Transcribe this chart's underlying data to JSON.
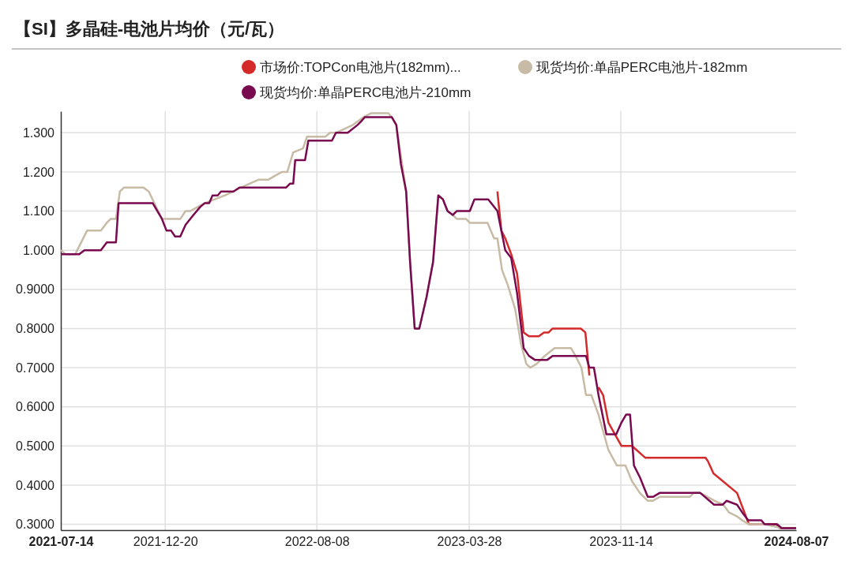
{
  "chart_data": {
    "type": "line",
    "title": "【SI】多晶硅-电池片均价（元/瓦）",
    "xlim": [
      "2021-07-14",
      "2024-08-07"
    ],
    "xticks": [
      "2021-07-14",
      "2021-12-20",
      "2022-08-08",
      "2023-03-28",
      "2023-11-14",
      "2024-08-07"
    ],
    "ylim": [
      0.285,
      1.355
    ],
    "yticks": [
      {
        "value": 0.3,
        "label": "0.3000"
      },
      {
        "value": 0.4,
        "label": "0.4000"
      },
      {
        "value": 0.5,
        "label": "0.5000"
      },
      {
        "value": 0.6,
        "label": "0.6000"
      },
      {
        "value": 0.7,
        "label": "0.7000"
      },
      {
        "value": 0.8,
        "label": "0.8000"
      },
      {
        "value": 0.9,
        "label": "0.9000"
      },
      {
        "value": 1.0,
        "label": "1.000"
      },
      {
        "value": 1.1,
        "label": "1.100"
      },
      {
        "value": 1.2,
        "label": "1.200"
      },
      {
        "value": 1.3,
        "label": "1.300"
      }
    ],
    "grid": true,
    "legend": "top",
    "marker": "none",
    "line_style": "solid",
    "series": [
      {
        "name": "市场价:TOPCon电池片(182mm)...",
        "color": "#d42a2a",
        "x": [
          "2023-05-10",
          "2023-05-16",
          "2023-05-22",
          "2023-05-31",
          "2023-06-09",
          "2023-06-19",
          "2023-06-27",
          "2023-07-12",
          "2023-07-20",
          "2023-07-27",
          "2023-08-02",
          "2023-09-14",
          "2023-09-21",
          "2023-09-27",
          "2023-10-04",
          "2023-10-11",
          "2023-10-18",
          "2023-10-26",
          "2023-11-15",
          "2023-12-01",
          "2023-12-21",
          "2024-03-22",
          "2024-03-26",
          "2024-04-03",
          "2024-05-09",
          "2024-05-27",
          "2024-05-29",
          "2024-07-08",
          "2024-07-13",
          "2024-08-07"
        ],
        "values": [
          1.15,
          1.05,
          1.03,
          0.99,
          0.94,
          0.79,
          0.78,
          0.78,
          0.79,
          0.79,
          0.8,
          0.8,
          0.79,
          0.68,
          null,
          0.65,
          0.63,
          0.56,
          0.5,
          0.5,
          0.47,
          0.47,
          0.46,
          0.43,
          0.38,
          0.3,
          0.3,
          0.3,
          0.29,
          0.29
        ]
      },
      {
        "name": "现货均价:单晶PERC电池片-182mm",
        "color": "#c8bba5",
        "x": [
          "2021-07-14",
          "2021-07-21",
          "2021-08-05",
          "2021-08-23",
          "2021-09-13",
          "2021-09-22",
          "2021-09-28",
          "2021-10-06",
          "2021-10-12",
          "2021-10-18",
          "2021-11-17",
          "2021-11-25",
          "2021-12-15",
          "2021-12-19",
          "2022-01-12",
          "2022-01-20",
          "2022-01-27",
          "2022-02-18",
          "2022-03-21",
          "2022-04-03",
          "2022-04-14",
          "2022-05-11",
          "2022-05-26",
          "2022-06-05",
          "2022-06-16",
          "2022-06-24",
          "2022-07-03",
          "2022-07-18",
          "2022-07-24",
          "2022-08-21",
          "2022-08-28",
          "2022-09-06",
          "2022-10-02",
          "2022-10-18",
          "2022-10-30",
          "2022-11-25",
          "2022-11-30",
          "2022-12-07",
          "2022-12-22",
          "2022-12-28",
          "2023-01-04",
          "2023-01-11",
          "2023-01-22",
          "2023-02-01",
          "2023-02-09",
          "2023-02-16",
          "2023-02-23",
          "2023-03-03",
          "2023-03-09",
          "2023-03-23",
          "2023-03-29",
          "2023-04-25",
          "2023-05-05",
          "2023-05-10",
          "2023-05-17",
          "2023-05-26",
          "2023-06-06",
          "2023-06-15",
          "2023-06-23",
          "2023-06-29",
          "2023-07-09",
          "2023-07-21",
          "2023-08-05",
          "2023-08-30",
          "2023-09-06",
          "2023-09-15",
          "2023-09-22",
          "2023-09-30",
          "2023-10-11",
          "2023-10-26",
          "2023-11-08",
          "2023-11-21",
          "2023-12-01",
          "2023-12-13",
          "2023-12-25",
          "2024-01-02",
          "2024-01-12",
          "2024-02-27",
          "2024-03-04",
          "2024-03-14",
          "2024-04-05",
          "2024-04-18",
          "2024-04-27",
          "2024-05-09",
          "2024-05-17",
          "2024-05-27",
          "2024-06-20",
          "2024-07-16",
          "2024-08-07"
        ],
        "values": [
          1.0,
          0.99,
          0.99,
          1.05,
          1.05,
          1.07,
          1.08,
          1.08,
          1.15,
          1.16,
          1.16,
          1.15,
          1.08,
          1.08,
          1.08,
          1.1,
          1.1,
          1.12,
          1.14,
          1.15,
          1.16,
          1.18,
          1.18,
          1.19,
          1.2,
          1.2,
          1.25,
          1.26,
          1.29,
          1.29,
          1.3,
          1.3,
          1.32,
          1.34,
          1.35,
          1.35,
          1.34,
          1.32,
          1.15,
          0.97,
          0.8,
          0.8,
          0.88,
          0.97,
          1.14,
          1.13,
          1.1,
          1.09,
          1.08,
          1.08,
          1.07,
          1.07,
          1.03,
          1.03,
          0.95,
          0.91,
          0.85,
          0.76,
          0.71,
          0.7,
          0.71,
          0.73,
          0.75,
          0.75,
          0.73,
          0.7,
          0.63,
          0.63,
          0.58,
          0.49,
          0.45,
          0.45,
          0.41,
          0.38,
          0.36,
          0.36,
          0.37,
          0.37,
          0.38,
          0.38,
          0.36,
          0.35,
          0.33,
          0.32,
          0.31,
          0.3,
          0.3,
          0.29,
          0.29
        ]
      },
      {
        "name": "现货均价:单晶PERC电池片-210mm",
        "color": "#7a0a4f",
        "x": [
          "2021-07-14",
          "2021-08-11",
          "2021-08-19",
          "2021-09-13",
          "2021-09-22",
          "2021-10-06",
          "2021-10-10",
          "2021-12-01",
          "2021-12-15",
          "2021-12-22",
          "2021-12-29",
          "2022-01-04",
          "2022-01-12",
          "2022-01-20",
          "2022-02-01",
          "2022-02-11",
          "2022-02-18",
          "2022-02-25",
          "2022-03-02",
          "2022-03-10",
          "2022-03-15",
          "2022-04-03",
          "2022-04-12",
          "2022-06-22",
          "2022-06-28",
          "2022-07-03",
          "2022-07-06",
          "2022-07-21",
          "2022-07-26",
          "2022-08-31",
          "2022-09-06",
          "2022-09-24",
          "2022-10-09",
          "2022-10-15",
          "2022-10-20",
          "2022-11-30",
          "2022-12-07",
          "2022-12-14",
          "2022-12-22",
          "2022-12-28",
          "2023-01-04",
          "2023-01-11",
          "2023-01-22",
          "2023-02-01",
          "2023-02-09",
          "2023-02-16",
          "2023-02-23",
          "2023-03-03",
          "2023-03-09",
          "2023-03-29",
          "2023-04-05",
          "2023-04-26",
          "2023-05-10",
          "2023-05-22",
          "2023-05-31",
          "2023-06-09",
          "2023-06-19",
          "2023-06-27",
          "2023-07-06",
          "2023-07-25",
          "2023-08-02",
          "2023-09-22",
          "2023-09-27",
          "2023-10-04",
          "2023-10-11",
          "2023-10-23",
          "2023-11-07",
          "2023-11-15",
          "2023-11-22",
          "2023-11-28",
          "2023-12-04",
          "2023-12-13",
          "2023-12-25",
          "2024-01-02",
          "2024-01-12",
          "2024-03-14",
          "2024-04-04",
          "2024-04-17",
          "2024-04-23",
          "2024-05-09",
          "2024-05-17",
          "2024-05-26",
          "2024-06-02",
          "2024-06-15",
          "2024-06-20",
          "2024-07-09",
          "2024-07-16",
          "2024-08-07"
        ],
        "values": [
          0.99,
          0.99,
          1.0,
          1.0,
          1.02,
          1.02,
          1.12,
          1.12,
          1.08,
          1.05,
          1.05,
          1.035,
          1.035,
          1.065,
          1.09,
          1.11,
          1.12,
          1.12,
          1.14,
          1.14,
          1.15,
          1.15,
          1.16,
          1.16,
          1.17,
          1.17,
          1.23,
          1.23,
          1.28,
          1.28,
          1.3,
          1.3,
          1.32,
          1.33,
          1.34,
          1.34,
          1.32,
          1.22,
          1.15,
          0.97,
          0.8,
          0.8,
          0.88,
          0.97,
          1.14,
          1.13,
          1.1,
          1.09,
          1.1,
          1.1,
          1.13,
          1.13,
          1.1,
          1.0,
          0.98,
          0.89,
          0.75,
          0.73,
          0.72,
          0.72,
          0.73,
          0.73,
          0.7,
          0.7,
          0.63,
          0.53,
          0.53,
          0.56,
          0.58,
          0.58,
          0.45,
          0.42,
          0.37,
          0.37,
          0.38,
          0.38,
          0.35,
          0.35,
          0.36,
          0.35,
          0.33,
          0.31,
          0.31,
          0.31,
          0.3,
          0.3,
          0.29,
          0.29
        ]
      }
    ]
  }
}
